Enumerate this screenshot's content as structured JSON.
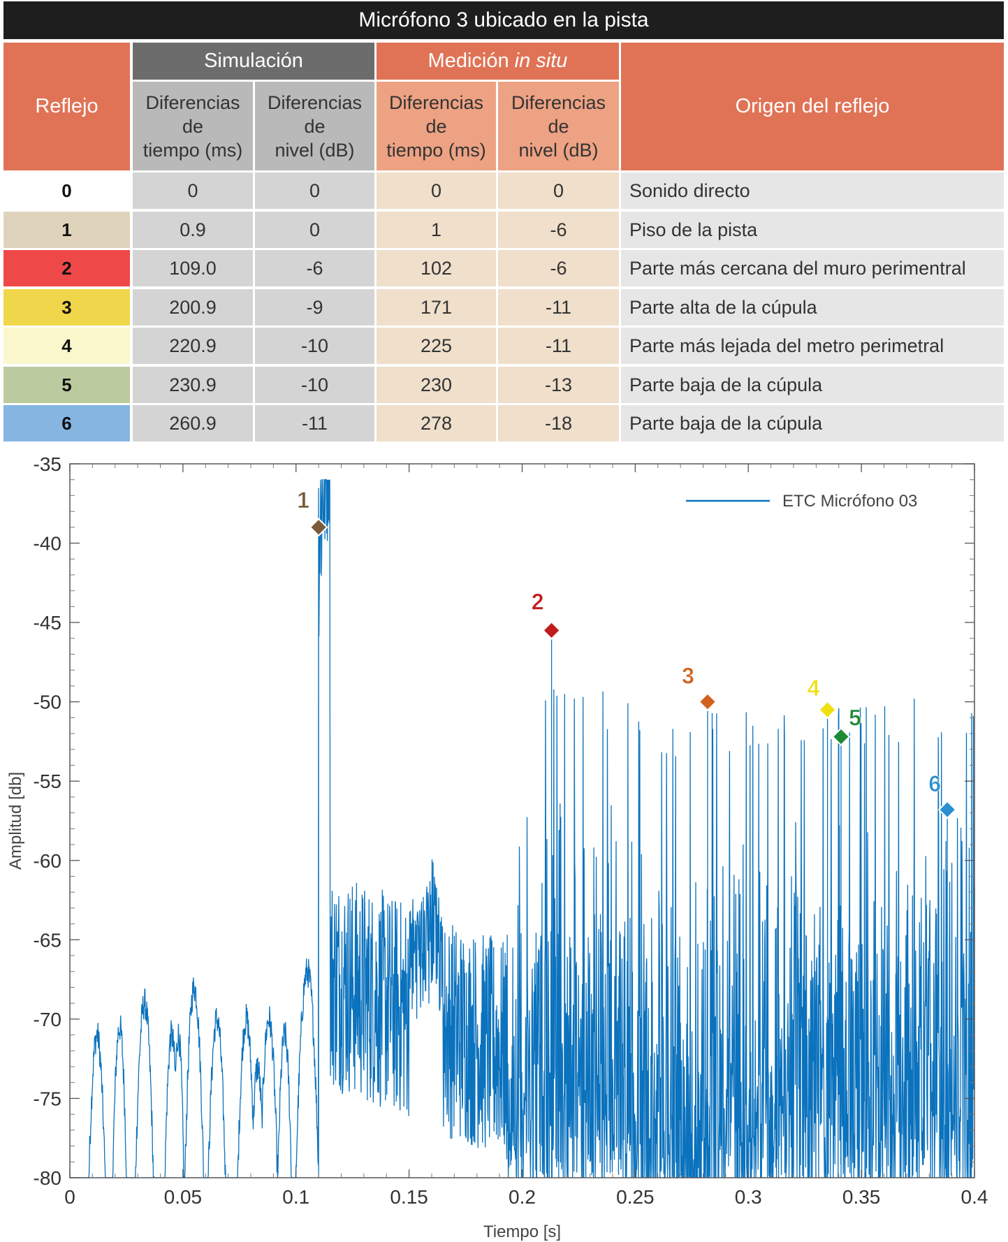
{
  "title": "Micrófono 3 ubicado en la pista",
  "table": {
    "headers": {
      "reflejo": "Reflejo",
      "simulacion": "Simulación",
      "medicion_prefix": "Medición ",
      "medicion_italic": "in situ",
      "origen": "Origen del reflejo",
      "sub_tiempo": [
        "Diferencias",
        "de",
        "tiempo (ms)"
      ],
      "sub_nivel": [
        "Diferencias",
        "de",
        "nivel (dB)"
      ]
    },
    "rows": [
      {
        "reflejo": "0",
        "sim_t": "0",
        "sim_n": "0",
        "med_t": "0",
        "med_n": "0",
        "origen": "Sonido directo",
        "color": "#ffffff"
      },
      {
        "reflejo": "1",
        "sim_t": "0.9",
        "sim_n": "0",
        "med_t": "1",
        "med_n": "-6",
        "origen": "Piso de la pista",
        "color": "#e0d3bc"
      },
      {
        "reflejo": "2",
        "sim_t": "109.0",
        "sim_n": "-6",
        "med_t": "102",
        "med_n": "-6",
        "origen": "Parte más cercana del muro perimentral",
        "color": "#ef4848"
      },
      {
        "reflejo": "3",
        "sim_t": "200.9",
        "sim_n": "-9",
        "med_t": "171",
        "med_n": "-11",
        "origen": "Parte alta de la cúpula",
        "color": "#f0d64a"
      },
      {
        "reflejo": "4",
        "sim_t": "220.9",
        "sim_n": "-10",
        "med_t": "225",
        "med_n": "-11",
        "origen": "Parte más lejada del metro perimetral",
        "color": "#fbf7cd"
      },
      {
        "reflejo": "5",
        "sim_t": "230.9",
        "sim_n": "-10",
        "med_t": "230",
        "med_n": "-13",
        "origen": "Parte baja de la cúpula",
        "color": "#bccb9f"
      },
      {
        "reflejo": "6",
        "sim_t": "260.9",
        "sim_n": "-11",
        "med_t": "278",
        "med_n": "-18",
        "origen": "Parte baja de la cúpula",
        "color": "#86b5e2"
      }
    ],
    "colors": {
      "header_orange": "#e07356",
      "header_gray": "#6c6c6c",
      "sub_gray": "#b9b9b9",
      "sub_orange": "#eda283",
      "body_gray": "#d4d4d4",
      "body_beige": "#efdfcb",
      "body_origin": "#e6e6e6"
    }
  },
  "chart_data": {
    "type": "line",
    "xlabel": "Tiempo [s]",
    "ylabel": "Amplitud [db]",
    "xlim": [
      0,
      0.4
    ],
    "ylim": [
      -80,
      -35
    ],
    "xticks": [
      0,
      0.05,
      0.1,
      0.15,
      0.2,
      0.25,
      0.3,
      0.35,
      0.4
    ],
    "xtick_labels": [
      "0",
      "0.05",
      "0.1",
      "0.15",
      "0.2",
      "0.25",
      "0.3",
      "0.35",
      "0.4"
    ],
    "yticks": [
      -35,
      -40,
      -45,
      -50,
      -55,
      -60,
      -65,
      -70,
      -75,
      -80
    ],
    "ytick_labels": [
      "-35",
      "-40",
      "-45",
      "-50",
      "-55",
      "-60",
      "-65",
      "-70",
      "-75",
      "-80"
    ],
    "legend": {
      "label": "ETC Micrófono 03",
      "position": "top-right"
    },
    "series_color": "#0b72bd",
    "markers": [
      {
        "label": "1",
        "x": 0.11,
        "y": -39.0,
        "color": "#7a5c3a"
      },
      {
        "label": "2",
        "x": 0.213,
        "y": -45.5,
        "color": "#c01c1c"
      },
      {
        "label": "3",
        "x": 0.282,
        "y": -50.0,
        "color": "#d2601e"
      },
      {
        "label": "4",
        "x": 0.335,
        "y": -50.5,
        "color": "#f0e010"
      },
      {
        "label": "5",
        "x": 0.341,
        "y": -52.2,
        "color": "#1e8a36"
      },
      {
        "label": "6",
        "x": 0.388,
        "y": -56.8,
        "color": "#2a90cf"
      }
    ]
  }
}
